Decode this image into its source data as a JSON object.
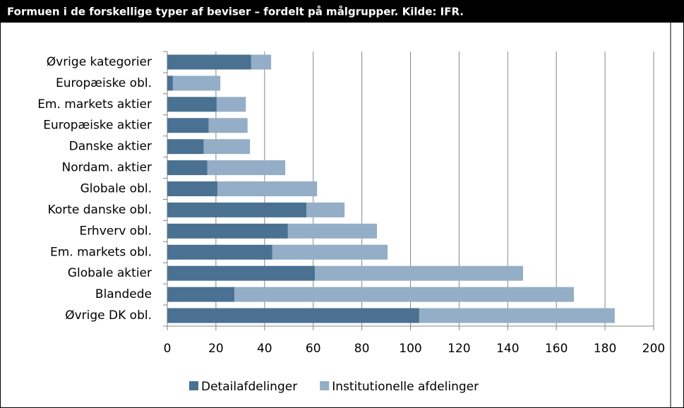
{
  "chart_data": {
    "type": "bar",
    "orientation": "horizontal",
    "stacked": true,
    "title": "Formuen i de forskellige typer af beviser – fordelt på målgrupper. Kilde: IFR.",
    "categories": [
      "Øvrige kategorier",
      "Europæiske obl.",
      "Em. markets aktier",
      "Europæiske aktier",
      "Danske aktier",
      "Nordam. aktier",
      "Globale obl.",
      "Korte danske  obl.",
      "Erhverv obl.",
      "Em. markets obl.",
      "Globale aktier",
      "Blandede",
      "Øvrige DK obl."
    ],
    "series": [
      {
        "name": "Detailafdelinger",
        "color": "#4a7192",
        "values": [
          34.5,
          2.3,
          20.3,
          17,
          15,
          16.5,
          20.6,
          57.2,
          49.6,
          43.2,
          60.7,
          27.6,
          103.6
        ]
      },
      {
        "name": "Institutionelle afdelinger",
        "color": "#93aec6",
        "values": [
          8.2,
          19.5,
          12,
          16,
          19,
          32,
          41,
          15.7,
          36.6,
          47.4,
          85.6,
          139.6,
          80.4
        ]
      }
    ],
    "xlim": [
      0,
      200
    ],
    "xticks": [
      0,
      20,
      40,
      60,
      80,
      100,
      120,
      140,
      160,
      180,
      200
    ],
    "grid": true,
    "legend": "bottom"
  }
}
